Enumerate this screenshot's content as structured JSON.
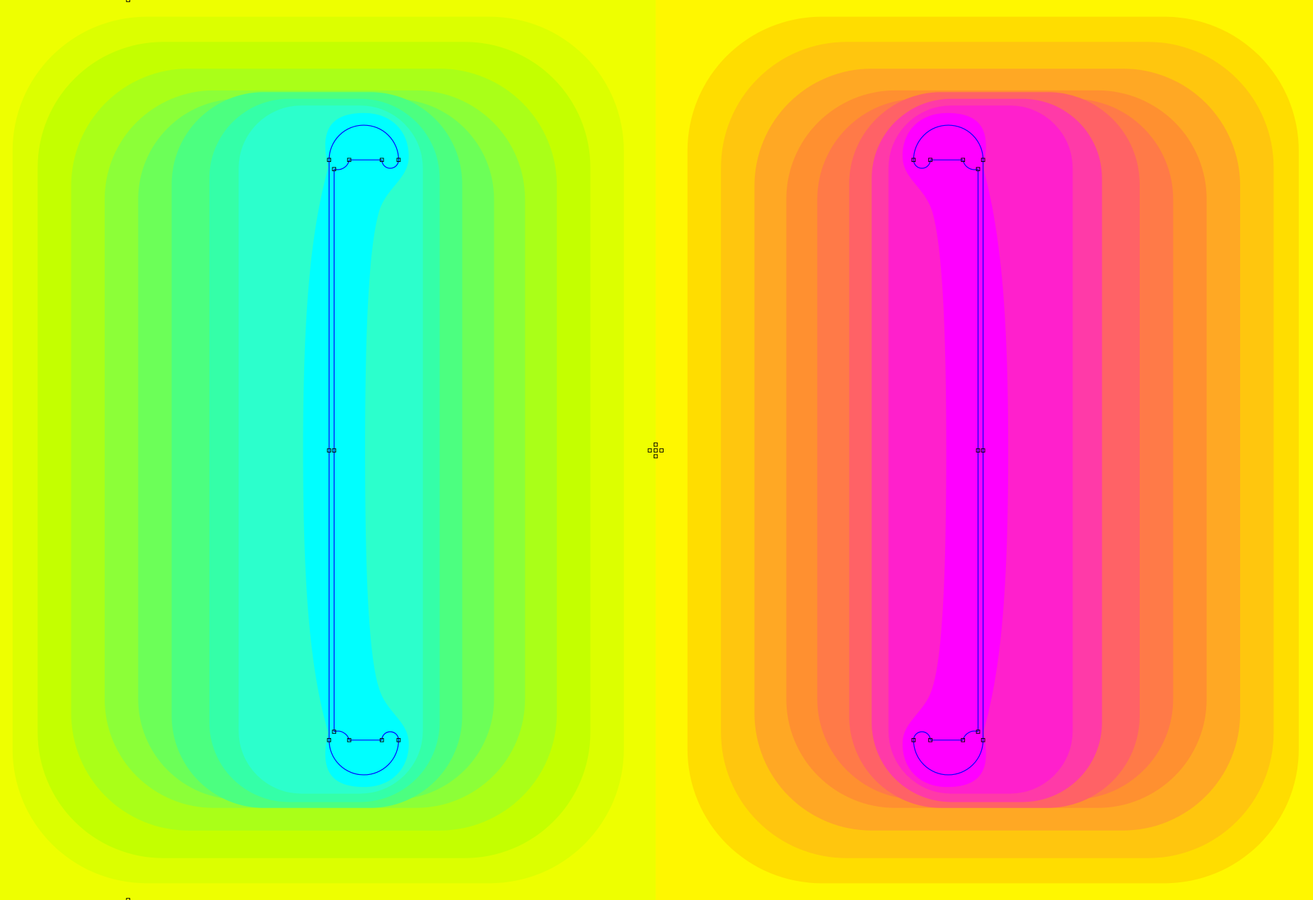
{
  "plot": {
    "type": "filled-contour-field",
    "left_region_colors": [
      "#eeff00",
      "#dcff00",
      "#c4ff00",
      "#aaff18",
      "#8cff38",
      "#6cff58",
      "#4cff80",
      "#34ffa8",
      "#2cffcc",
      "#00ffff"
    ],
    "right_region_colors": [
      "#fff700",
      "#ffdd00",
      "#ffc60e",
      "#ffa824",
      "#ff9030",
      "#ff7a48",
      "#ff6266",
      "#ff3aa8",
      "#ff20cc",
      "#ff00ff"
    ],
    "outline_color": "#0000ff",
    "node_color": "#000000"
  }
}
